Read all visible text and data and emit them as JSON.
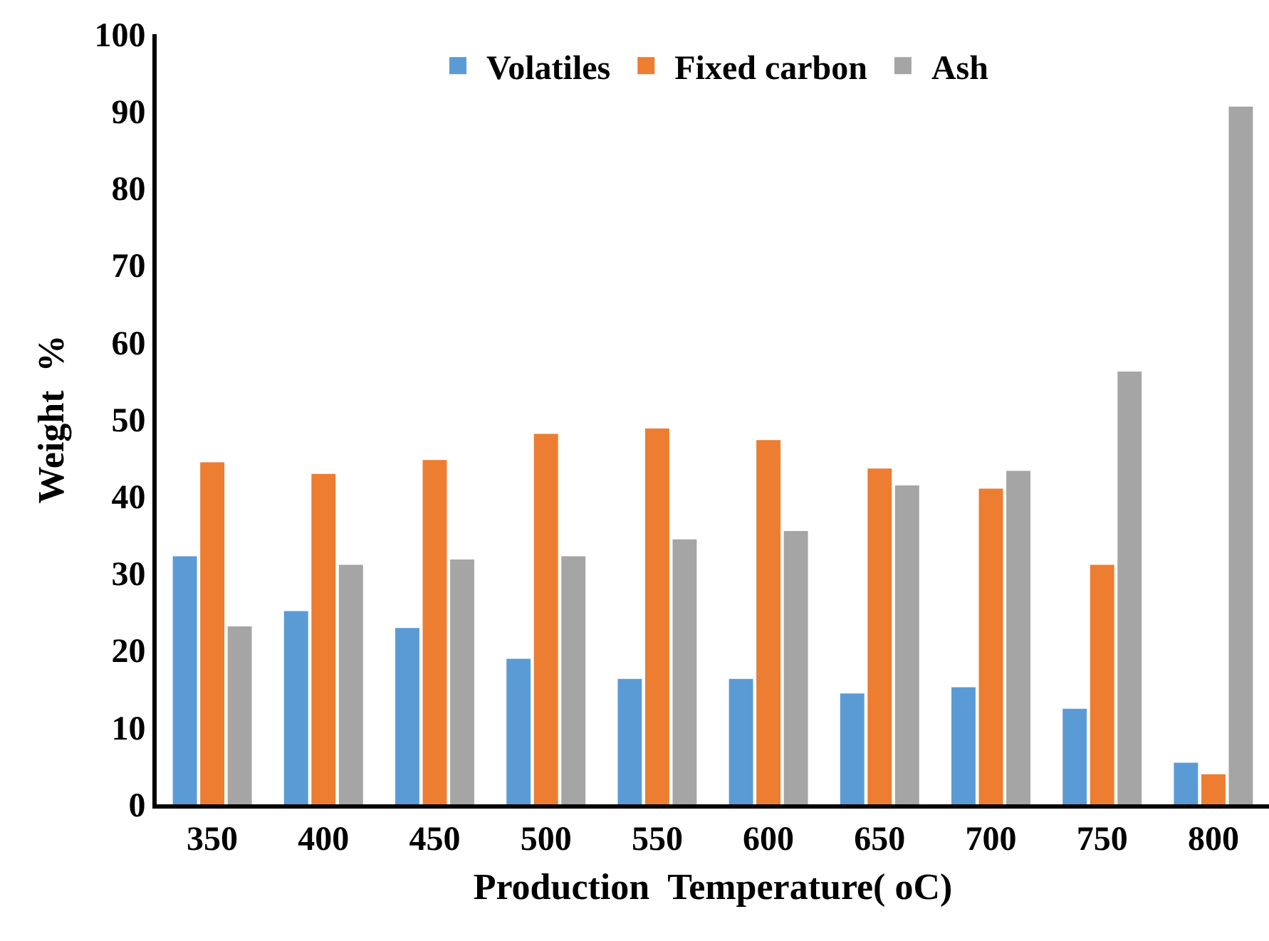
{
  "chart_data": {
    "type": "bar",
    "xlabel": "Production  Temperature( oC)",
    "ylabel": "Weight  %",
    "categories": [
      "350",
      "400",
      "450",
      "500",
      "550",
      "600",
      "650",
      "700",
      "750",
      "800"
    ],
    "series": [
      {
        "name": "Volatiles",
        "color": "#5b9bd5",
        "values": [
          32.2,
          25.1,
          22.9,
          18.9,
          16.3,
          16.3,
          14.4,
          15.2,
          12.4,
          5.4
        ]
      },
      {
        "name": "Fixed carbon",
        "color": "#ed7d31",
        "values": [
          44.4,
          42.9,
          44.7,
          48.1,
          48.8,
          47.3,
          43.6,
          41.0,
          31.1,
          3.9
        ]
      },
      {
        "name": "Ash",
        "color": "#a5a5a5",
        "values": [
          23.1,
          31.1,
          31.8,
          32.2,
          34.4,
          35.5,
          41.4,
          43.3,
          56.2,
          90.6
        ]
      }
    ],
    "ylim": [
      0,
      100
    ],
    "yticks": [
      0,
      10,
      20,
      30,
      40,
      50,
      60,
      70,
      80,
      90,
      100
    ],
    "grid": false,
    "legend": "top"
  }
}
